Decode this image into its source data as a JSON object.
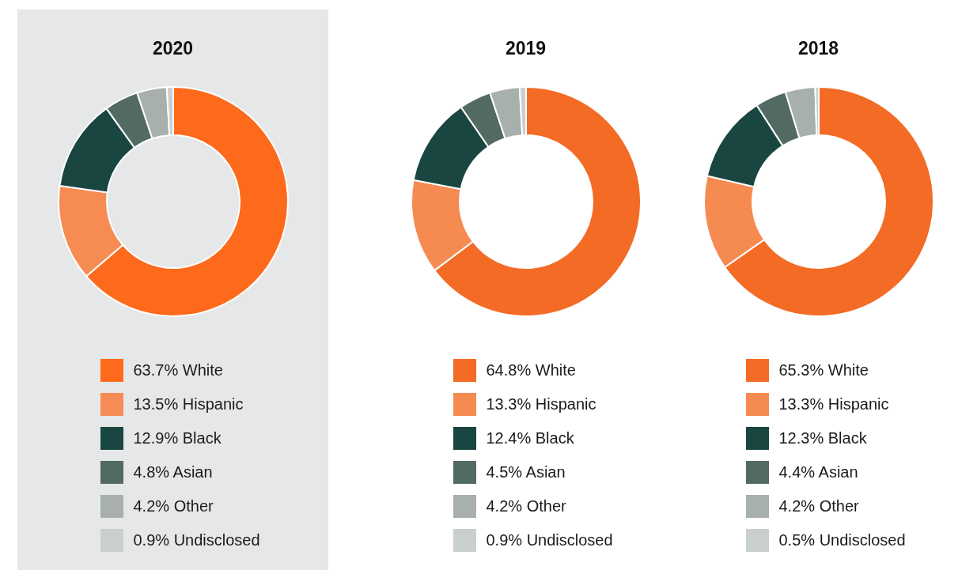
{
  "chart_data": [
    {
      "type": "donut",
      "title": "2020",
      "categories": [
        "White",
        "Hispanic",
        "Black",
        "Asian",
        "Other",
        "Undisclosed"
      ],
      "values": [
        63.7,
        13.5,
        12.9,
        4.8,
        4.2,
        0.9
      ],
      "value_labels": [
        "63.7%",
        "13.5%",
        "12.9%",
        "4.8%",
        "4.2%",
        "0.9%"
      ],
      "colors": [
        "#fe6a1c",
        "#f68c53",
        "#1a4641",
        "#536a63",
        "#a7b0ad",
        "#c9cfcd"
      ],
      "legend": "bottom"
    },
    {
      "type": "donut",
      "title": "2019",
      "categories": [
        "White",
        "Hispanic",
        "Black",
        "Asian",
        "Other",
        "Undisclosed"
      ],
      "values": [
        64.8,
        13.3,
        12.4,
        4.5,
        4.2,
        0.9
      ],
      "value_labels": [
        "64.8%",
        "13.3%",
        "12.4%",
        "4.5%",
        "4.2%",
        "0.9%"
      ],
      "colors": [
        "#f36b25",
        "#f68b52",
        "#1a4641",
        "#536a63",
        "#a7b0ad",
        "#c9cfcd"
      ],
      "legend": "bottom"
    },
    {
      "type": "donut",
      "title": "2018",
      "categories": [
        "White",
        "Hispanic",
        "Black",
        "Asian",
        "Other",
        "Undisclosed"
      ],
      "values": [
        65.3,
        13.3,
        12.3,
        4.4,
        4.2,
        0.5
      ],
      "value_labels": [
        "65.3%",
        "13.3%",
        "12.3%",
        "4.4%",
        "4.2%",
        "0.5%"
      ],
      "colors": [
        "#f36b25",
        "#f68b52",
        "#1a4641",
        "#536a63",
        "#a7b0ad",
        "#c9cfcd"
      ],
      "legend": "bottom"
    }
  ]
}
